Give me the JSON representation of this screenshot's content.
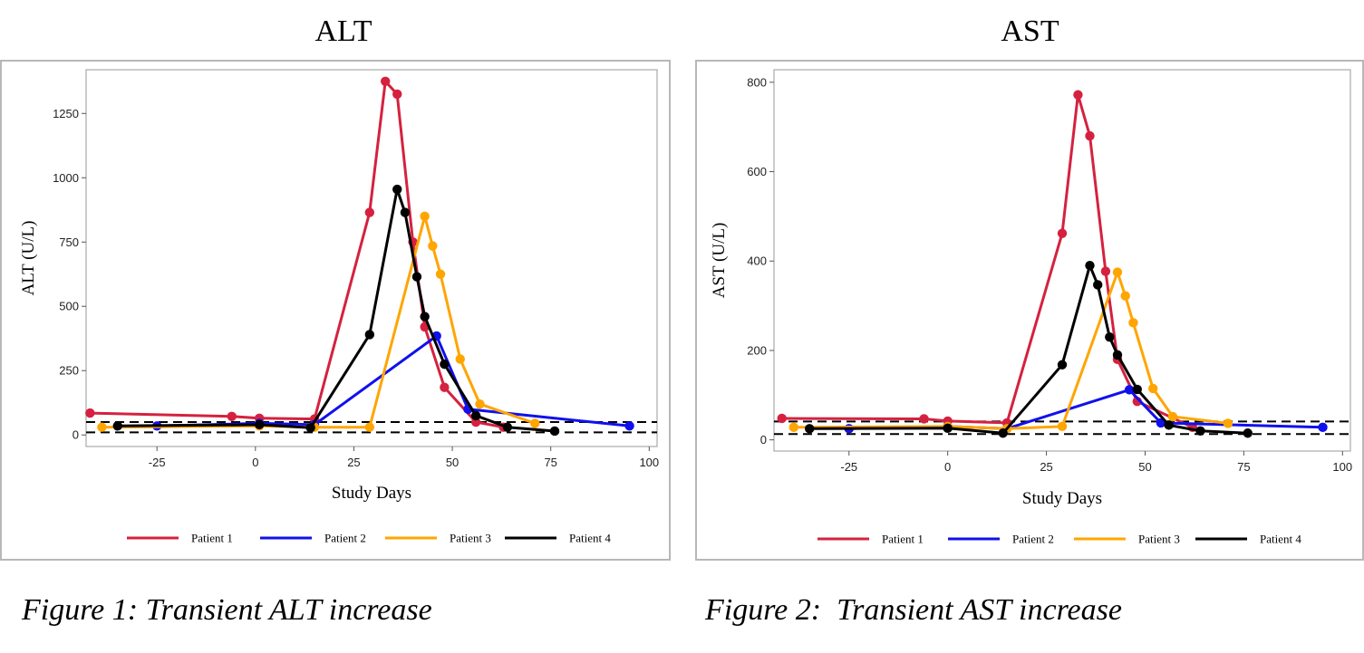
{
  "figure1": {
    "title": "ALT",
    "caption": "Figure 1: Transient ALT increase"
  },
  "figure2": {
    "title": "AST",
    "caption": "Figure 2:  Transient AST increase"
  },
  "colors": {
    "patient1": "#d5213f",
    "patient2": "#1010ee",
    "patient3": "#ffa500",
    "patient4": "#000000",
    "frame": "#b8b8b8"
  },
  "chart_data": [
    {
      "type": "line",
      "title": "ALT",
      "xlabel": "Study Days",
      "ylabel": "ALT (U/L)",
      "xlim": [
        -43,
        102
      ],
      "ylim": [
        -45,
        1420
      ],
      "xticks": [
        -25,
        0,
        25,
        50,
        75,
        100
      ],
      "yticks": [
        0,
        250,
        500,
        750,
        1000,
        1250
      ],
      "reference_lines": [
        10,
        50
      ],
      "legend_position": "bottom",
      "series": [
        {
          "name": "Patient 1",
          "x": [
            -42,
            -6,
            1,
            15,
            29,
            33,
            36,
            40,
            43,
            48,
            56,
            63
          ],
          "y": [
            85,
            72,
            65,
            62,
            865,
            1375,
            1325,
            750,
            420,
            185,
            50,
            30
          ]
        },
        {
          "name": "Patient 2",
          "x": [
            -25,
            1,
            15,
            46,
            54,
            95
          ],
          "y": [
            35,
            45,
            40,
            385,
            100,
            35
          ]
        },
        {
          "name": "Patient 3",
          "x": [
            -39,
            1,
            15,
            29,
            43,
            45,
            47,
            52,
            57,
            71
          ],
          "y": [
            30,
            35,
            30,
            30,
            850,
            735,
            625,
            295,
            120,
            45
          ]
        },
        {
          "name": "Patient 4",
          "x": [
            -35,
            1,
            14,
            29,
            36,
            38,
            41,
            43,
            48,
            56,
            64,
            76
          ],
          "y": [
            35,
            40,
            28,
            390,
            955,
            865,
            615,
            460,
            275,
            75,
            30,
            15
          ]
        }
      ]
    },
    {
      "type": "line",
      "title": "AST",
      "xlabel": "Study Days",
      "ylabel": "AST (U/L)",
      "xlim": [
        -44,
        102
      ],
      "ylim": [
        -25,
        828
      ],
      "xticks": [
        -25,
        0,
        25,
        50,
        75,
        100
      ],
      "yticks": [
        0,
        200,
        400,
        600,
        800
      ],
      "reference_lines": [
        13,
        41
      ],
      "legend_position": "bottom",
      "series": [
        {
          "name": "Patient 1",
          "x": [
            -42,
            -6,
            0,
            15,
            29,
            33,
            36,
            40,
            43,
            48,
            62
          ],
          "y": [
            48,
            47,
            42,
            38,
            462,
            772,
            680,
            377,
            180,
            86,
            28
          ]
        },
        {
          "name": "Patient 2",
          "x": [
            -25,
            0,
            15,
            46,
            54,
            95
          ],
          "y": [
            25,
            30,
            25,
            112,
            38,
            28
          ]
        },
        {
          "name": "Patient 3",
          "x": [
            -39,
            0,
            15,
            29,
            43,
            45,
            47,
            52,
            57,
            71
          ],
          "y": [
            28,
            30,
            25,
            30,
            375,
            322,
            262,
            115,
            52,
            37
          ]
        },
        {
          "name": "Patient 4",
          "x": [
            -35,
            0,
            14,
            29,
            36,
            38,
            41,
            43,
            48,
            56,
            64,
            76
          ],
          "y": [
            25,
            26,
            15,
            168,
            390,
            347,
            230,
            190,
            113,
            33,
            20,
            15
          ]
        }
      ]
    }
  ]
}
